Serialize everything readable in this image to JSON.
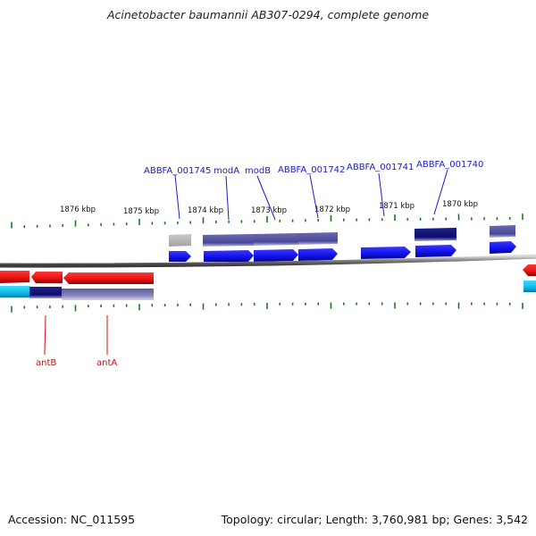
{
  "title": "Acinetobacter baumannii AB307-0294, complete genome",
  "footer": {
    "accession": "Accession: NC_011595",
    "topology": "Topology: circular; Length: 3,760,981 bp; Genes: 3,542"
  },
  "scale_labels": [
    "1876 kbp",
    "1875 kbp",
    "1874 kbp",
    "1873 kbp",
    "1872 kbp",
    "1871 kbp",
    "1870 kbp"
  ],
  "genes_top": [
    "ABBFA_001745",
    "modA",
    "modB",
    "ABBFA_001742",
    "ABBFA_001741",
    "ABBFA_001740"
  ],
  "genes_bottom": [
    "antB",
    "antA"
  ],
  "colors": {
    "forward_gene": "#1414ee",
    "reverse_gene": "#e81010",
    "cds_block": "#4c4c9c",
    "dark_block": "#0c0c6e",
    "pseudo_block": "#b4b4b4",
    "cyan_block": "#20c8f0",
    "backbone": "#808080",
    "tick": "#1a7a1a",
    "top_label": "#1a1acc",
    "bottom_label": "#cc1111"
  }
}
